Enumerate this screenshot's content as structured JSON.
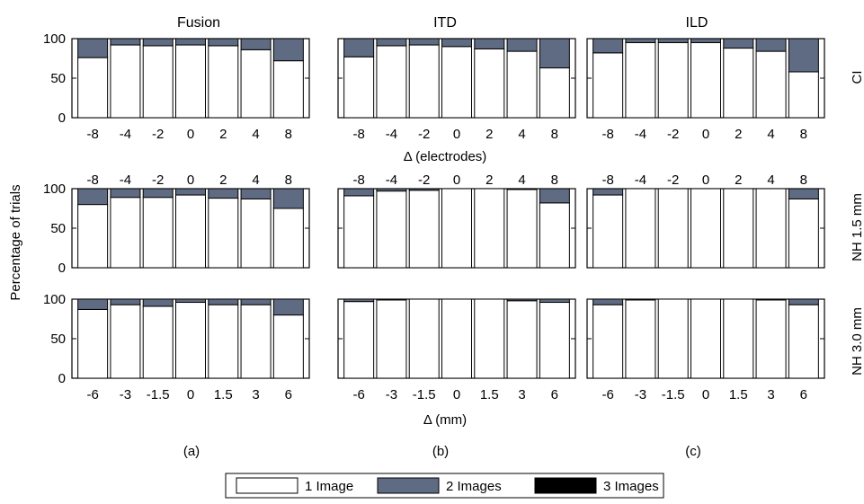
{
  "figure": {
    "column_titles": [
      "Fusion",
      "ITD",
      "ILD"
    ],
    "row_labels": [
      "CI",
      "NH 1.5 mm",
      "NH 3.0 mm"
    ],
    "panel_labels": [
      "(a)",
      "(b)",
      "(c)"
    ],
    "ylabel": "Percentage of trials",
    "xlabel_top": "Δ (electrodes)",
    "xlabel_bottom": "Δ (mm)",
    "legend": [
      "1 Image",
      "2 Images",
      "3 Images"
    ]
  },
  "colors": {
    "one_image": "#ffffff",
    "two_images": "#5f6b82",
    "three_images": "#000000",
    "stroke": "#000000"
  },
  "chart_data": {
    "type": "bar",
    "stacked": true,
    "ylim": [
      0,
      100
    ],
    "yticks": [
      0,
      50,
      100
    ],
    "categories_electrodes": [
      "-8",
      "-4",
      "-2",
      "0",
      "2",
      "4",
      "8"
    ],
    "categories_mm": [
      "-6",
      "-3",
      "-1.5",
      "0",
      "1.5",
      "3",
      "6"
    ],
    "panels": [
      {
        "row": 0,
        "col": 0,
        "category_set": "electrodes",
        "one_image": [
          76,
          92,
          91,
          92,
          91,
          86,
          72
        ],
        "two_images": [
          24,
          8,
          9,
          8,
          9,
          14,
          28
        ],
        "three_images": [
          0,
          0,
          0,
          0,
          0,
          0,
          0
        ]
      },
      {
        "row": 0,
        "col": 1,
        "category_set": "electrodes",
        "one_image": [
          77,
          91,
          92,
          90,
          87,
          84,
          63
        ],
        "two_images": [
          23,
          9,
          8,
          10,
          13,
          16,
          37
        ],
        "three_images": [
          0,
          0,
          0,
          0,
          0,
          0,
          0
        ]
      },
      {
        "row": 0,
        "col": 2,
        "category_set": "electrodes",
        "one_image": [
          82,
          95,
          95,
          95,
          88,
          84,
          58
        ],
        "two_images": [
          18,
          5,
          5,
          5,
          12,
          16,
          42
        ],
        "three_images": [
          0,
          0,
          0,
          0,
          0,
          0,
          0
        ]
      },
      {
        "row": 1,
        "col": 0,
        "category_set": "electrodes",
        "one_image": [
          80,
          89,
          89,
          92,
          88,
          87,
          75
        ],
        "two_images": [
          20,
          11,
          11,
          8,
          12,
          13,
          25
        ],
        "three_images": [
          0,
          0,
          0,
          0,
          0,
          0,
          0
        ]
      },
      {
        "row": 1,
        "col": 1,
        "category_set": "electrodes",
        "one_image": [
          91,
          97,
          98,
          100,
          100,
          99,
          82
        ],
        "two_images": [
          9,
          3,
          2,
          0,
          0,
          1,
          18
        ],
        "three_images": [
          0,
          0,
          0,
          0,
          0,
          0,
          0
        ]
      },
      {
        "row": 1,
        "col": 2,
        "category_set": "electrodes",
        "one_image": [
          92,
          100,
          100,
          100,
          100,
          100,
          87
        ],
        "two_images": [
          8,
          0,
          0,
          0,
          0,
          0,
          13
        ],
        "three_images": [
          0,
          0,
          0,
          0,
          0,
          0,
          0
        ]
      },
      {
        "row": 2,
        "col": 0,
        "category_set": "mm",
        "one_image": [
          87,
          93,
          91,
          96,
          93,
          93,
          80
        ],
        "two_images": [
          13,
          7,
          9,
          4,
          7,
          7,
          20
        ],
        "three_images": [
          0,
          0,
          0,
          0,
          0,
          0,
          0
        ]
      },
      {
        "row": 2,
        "col": 1,
        "category_set": "mm",
        "one_image": [
          97,
          99,
          100,
          100,
          100,
          98,
          96
        ],
        "two_images": [
          3,
          1,
          0,
          0,
          0,
          2,
          4
        ],
        "three_images": [
          0,
          0,
          0,
          0,
          0,
          0,
          0
        ]
      },
      {
        "row": 2,
        "col": 2,
        "category_set": "mm",
        "one_image": [
          93,
          99,
          100,
          100,
          100,
          99,
          93
        ],
        "two_images": [
          7,
          1,
          0,
          0,
          0,
          1,
          7
        ],
        "three_images": [
          0,
          0,
          0,
          0,
          0,
          0,
          0
        ]
      }
    ]
  }
}
